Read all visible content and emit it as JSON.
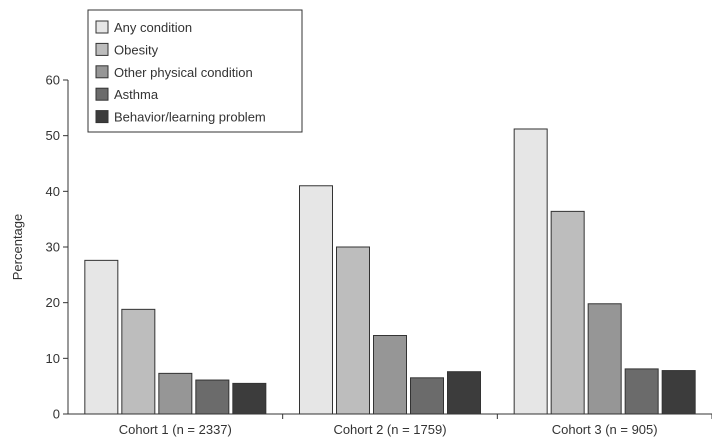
{
  "chart_data": {
    "type": "bar",
    "title": "",
    "xlabel": "",
    "ylabel": "Percentage",
    "ylim": [
      0,
      60
    ],
    "yticks": [
      0,
      10,
      20,
      30,
      40,
      50,
      60
    ],
    "grid": false,
    "legend_position": "top-left",
    "categories": [
      "Cohort 1 (n = 2337)",
      "Cohort 2 (n = 1759)",
      "Cohort 3 (n = 905)"
    ],
    "series": [
      {
        "name": "Any condition",
        "color": "#e6e6e6",
        "values": [
          27.6,
          41.0,
          51.2
        ]
      },
      {
        "name": "Obesity",
        "color": "#bdbdbd",
        "values": [
          18.8,
          30.0,
          36.4
        ]
      },
      {
        "name": "Other physical condition",
        "color": "#969696",
        "values": [
          7.3,
          14.1,
          19.8
        ]
      },
      {
        "name": "Asthma",
        "color": "#6b6b6b",
        "values": [
          6.1,
          6.5,
          8.1
        ]
      },
      {
        "name": "Behavior/learning problem",
        "color": "#3c3c3c",
        "values": [
          5.5,
          7.6,
          7.8
        ]
      }
    ]
  }
}
